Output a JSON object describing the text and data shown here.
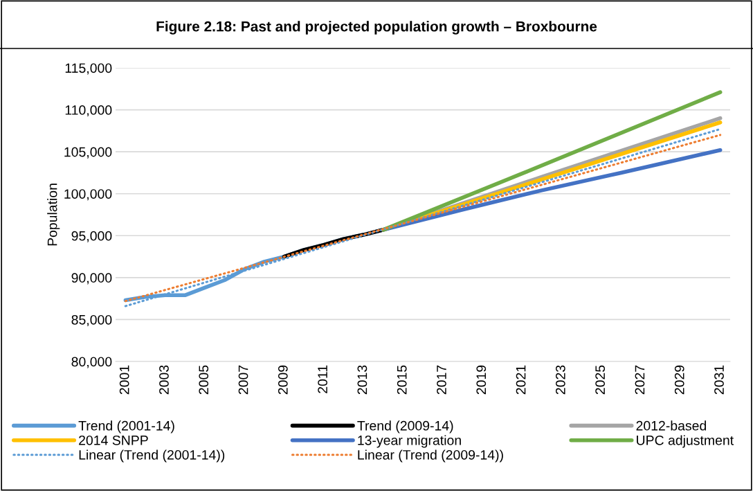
{
  "chart_data": {
    "type": "line",
    "title": "Figure 2.18: Past and projected population growth – Broxbourne",
    "ylabel": "Population",
    "xlim": [
      2000.5,
      2031.5
    ],
    "xticks": [
      2001,
      2003,
      2005,
      2007,
      2009,
      2011,
      2013,
      2015,
      2017,
      2019,
      2021,
      2023,
      2025,
      2027,
      2029,
      2031
    ],
    "ylim": [
      80000,
      115000
    ],
    "yticks": [
      {
        "value": 80000,
        "label": "80,000"
      },
      {
        "value": 85000,
        "label": "85,000"
      },
      {
        "value": 90000,
        "label": "90,000"
      },
      {
        "value": 95000,
        "label": "95,000"
      },
      {
        "value": 100000,
        "label": "100,000"
      },
      {
        "value": 105000,
        "label": "105,000"
      },
      {
        "value": 110000,
        "label": "110,000"
      },
      {
        "value": 115000,
        "label": "115,000"
      }
    ],
    "grid": "y",
    "legend": "bottom",
    "marker": "none",
    "line_style": "solid",
    "series": [
      {
        "name": "Trend (2001-14)",
        "color": "#5b9bd5",
        "x": [
          2001,
          2002,
          2003,
          2004,
          2005,
          2006,
          2007,
          2008,
          2009,
          2010,
          2011,
          2012,
          2013,
          2014
        ],
        "values": [
          87300,
          87700,
          87900,
          87900,
          88800,
          89700,
          91000,
          91900,
          92500,
          93300,
          93900,
          94600,
          95100,
          95700
        ]
      },
      {
        "name": "Trend (2009-14)",
        "color": "#000000",
        "x": [
          2009,
          2010,
          2011,
          2012,
          2013,
          2014
        ],
        "values": [
          92500,
          93300,
          93900,
          94600,
          95100,
          95700
        ]
      },
      {
        "name": "2012-based",
        "color": "#a5a5a5",
        "x": [
          2014,
          2022,
          2031
        ],
        "values": [
          95700,
          102000,
          109000
        ]
      },
      {
        "name": "2014 SNPP",
        "color": "#ffc000",
        "x": [
          2014,
          2022,
          2031
        ],
        "values": [
          95700,
          101700,
          108500
        ]
      },
      {
        "name": "13-year migration",
        "color": "#4472c4",
        "x": [
          2014,
          2018,
          2022,
          2026,
          2031
        ],
        "values": [
          95700,
          98100,
          100400,
          102500,
          105200
        ]
      },
      {
        "name": "UPC adjustment",
        "color": "#70ad47",
        "x": [
          2014,
          2021,
          2031
        ],
        "values": [
          95700,
          102400,
          112100
        ]
      },
      {
        "name": "Linear (Trend (2001-14))",
        "color": "#5b9bd5",
        "line_style": "dotted",
        "x": [
          2001,
          2031
        ],
        "values": [
          86600,
          107700
        ]
      },
      {
        "name": "Linear (Trend (2009-14))",
        "color": "#ed7d31",
        "line_style": "dotted",
        "x": [
          2001,
          2031
        ],
        "values": [
          87200,
          107000
        ]
      }
    ]
  }
}
